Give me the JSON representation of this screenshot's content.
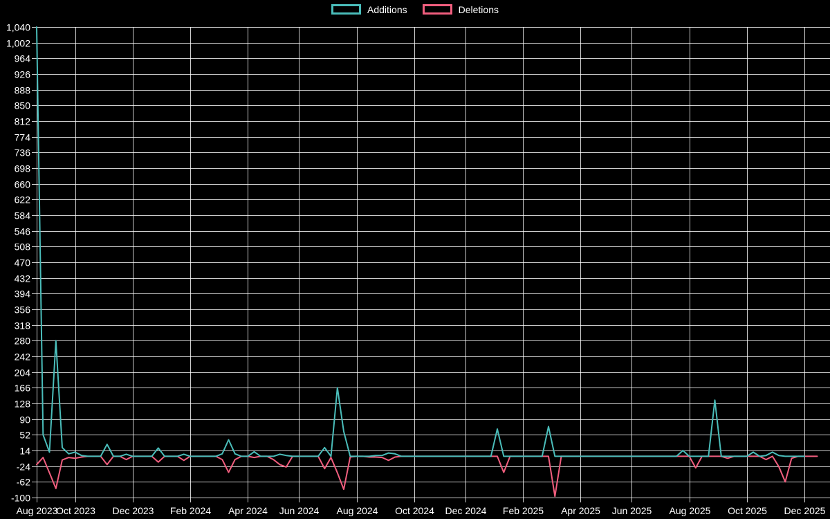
{
  "legend": {
    "position": "top",
    "items": [
      {
        "label": "Additions",
        "color": "#4abdba"
      },
      {
        "label": "Deletions",
        "color": "#f15e7e"
      }
    ]
  },
  "chart_data": {
    "type": "line",
    "title": "",
    "background_color": "#000000",
    "grid_color": "#ffffff",
    "text_color": "#ffffff",
    "legend_position": "top",
    "y_axis": {
      "min": -100,
      "max": 1040,
      "step": 38,
      "tick_labels": [
        "1,040",
        "1,002",
        "964",
        "926",
        "888",
        "850",
        "812",
        "774",
        "736",
        "698",
        "660",
        "622",
        "584",
        "546",
        "508",
        "470",
        "432",
        "394",
        "356",
        "318",
        "280",
        "242",
        "204",
        "166",
        "128",
        "90",
        "52",
        "14",
        "-24",
        "-62",
        "-100"
      ]
    },
    "x_axis": {
      "unit": "weeks",
      "total_weeks": 120,
      "ticks": [
        {
          "week": 0,
          "label": "Aug 2023"
        },
        {
          "week": 6,
          "label": "Oct 2023"
        },
        {
          "week": 15,
          "label": "Dec 2023"
        },
        {
          "week": 24,
          "label": "Feb 2024"
        },
        {
          "week": 33,
          "label": "Apr 2024"
        },
        {
          "week": 41,
          "label": "Jun 2024"
        },
        {
          "week": 50,
          "label": "Aug 2024"
        },
        {
          "week": 59,
          "label": "Oct 2024"
        },
        {
          "week": 67,
          "label": "Dec 2024"
        },
        {
          "week": 76,
          "label": "Feb 2025"
        },
        {
          "week": 85,
          "label": "Apr 2025"
        },
        {
          "week": 93,
          "label": "Jun 2025"
        },
        {
          "week": 102,
          "label": "Aug 2025"
        },
        {
          "week": 111,
          "label": "Oct 2025"
        },
        {
          "week": 120,
          "label": "Dec 2025"
        }
      ]
    },
    "series": [
      {
        "name": "Deletions",
        "color": "#f15e7e",
        "values": [
          -20,
          -3,
          -40,
          -78,
          -9,
          -3,
          -5,
          -2,
          0,
          0,
          0,
          -20,
          0,
          0,
          -8,
          0,
          0,
          0,
          0,
          -14,
          0,
          0,
          0,
          -10,
          0,
          0,
          0,
          0,
          0,
          -8,
          -39,
          -8,
          0,
          0,
          -3,
          0,
          0,
          -8,
          -20,
          -26,
          0,
          0,
          0,
          0,
          0,
          -30,
          -3,
          -40,
          -80,
          -2,
          0,
          0,
          -2,
          -2,
          -3,
          -10,
          -2,
          0,
          0,
          0,
          0,
          0,
          0,
          0,
          0,
          0,
          0,
          0,
          0,
          0,
          0,
          0,
          0,
          -39,
          0,
          0,
          0,
          0,
          0,
          0,
          0,
          -97,
          0,
          0,
          0,
          0,
          0,
          0,
          0,
          0,
          0,
          0,
          0,
          0,
          0,
          0,
          0,
          0,
          0,
          0,
          0,
          0,
          0,
          -28,
          0,
          0,
          0,
          0,
          -5,
          0,
          0,
          0,
          0,
          0,
          -8,
          0,
          -25,
          -62,
          -5,
          0,
          0,
          0,
          0
        ]
      },
      {
        "name": "Additions",
        "color": "#4abdba",
        "values": [
          1040,
          52,
          10,
          280,
          21,
          6,
          10,
          2,
          0,
          0,
          0,
          29,
          0,
          0,
          5,
          0,
          0,
          0,
          0,
          20,
          0,
          0,
          0,
          5,
          0,
          0,
          0,
          0,
          0,
          6,
          40,
          6,
          0,
          0,
          11,
          0,
          0,
          0,
          5,
          2,
          0,
          0,
          0,
          0,
          0,
          21,
          0,
          166,
          60,
          0,
          0,
          0,
          0,
          2,
          2,
          8,
          6,
          0,
          0,
          0,
          0,
          0,
          0,
          0,
          0,
          0,
          0,
          0,
          0,
          0,
          0,
          0,
          66,
          0,
          0,
          0,
          0,
          0,
          0,
          0,
          72,
          0,
          0,
          0,
          0,
          0,
          0,
          0,
          0,
          0,
          0,
          0,
          0,
          0,
          0,
          0,
          0,
          0,
          0,
          0,
          0,
          14,
          0,
          0,
          0,
          0,
          136,
          0,
          0,
          0,
          0,
          0,
          10,
          0,
          2,
          10,
          2,
          0,
          0,
          0,
          0
        ]
      }
    ]
  }
}
